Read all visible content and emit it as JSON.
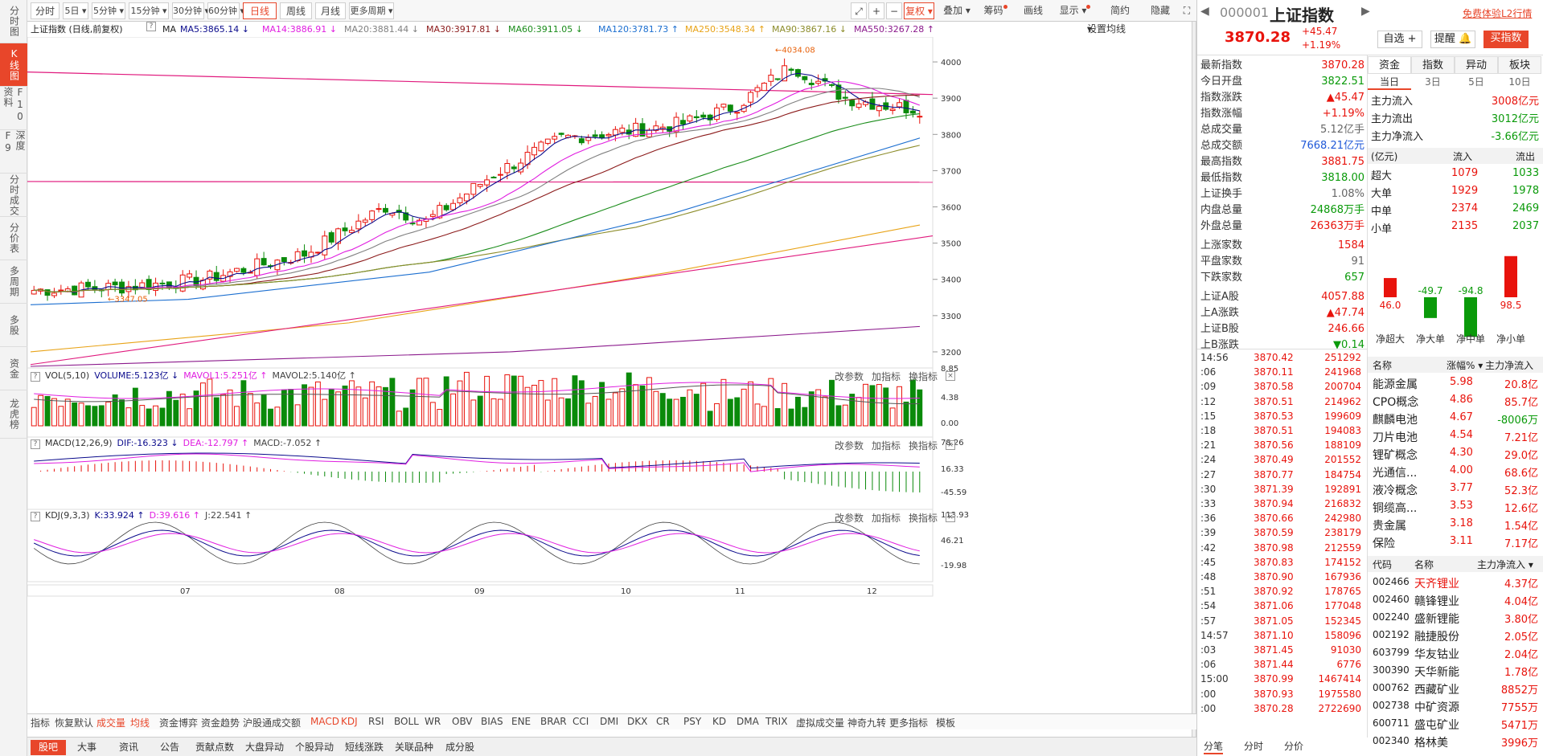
{
  "left_nav": [
    "分时图",
    "K线图",
    "F10资料",
    "深度F9",
    "分时成交",
    "分价表",
    "多周期",
    "多股",
    "资金",
    "龙虎榜"
  ],
  "toolbar": {
    "periods": [
      "分时",
      "5日",
      "5分钟",
      "15分钟",
      "30分钟",
      "60分钟",
      "日线",
      "周线",
      "月线",
      "更多周期"
    ],
    "active": "日线",
    "right": [
      "复权",
      "叠加",
      "筹码",
      "画线",
      "显示",
      "简约",
      "隐藏"
    ]
  },
  "chart_info": {
    "title": "上证指数 (日线,前复权)",
    "ma_label": "MA",
    "ma": [
      {
        "text": "MA5:3865.14",
        "color": "#0b0b8c",
        "arrow": "↓"
      },
      {
        "text": "MA14:3886.91",
        "color": "#e01ee0",
        "arrow": "↓"
      },
      {
        "text": "MA20:3881.44",
        "color": "#808080",
        "arrow": "↓"
      },
      {
        "text": "MA30:3917.81",
        "color": "#8b1a1a",
        "arrow": "↓"
      },
      {
        "text": "MA60:3911.05",
        "color": "#1a8c1a",
        "arrow": "↓"
      },
      {
        "text": "MA120:3781.73",
        "color": "#1c6fd0",
        "arrow": "↑"
      },
      {
        "text": "MA250:3548.34",
        "color": "#e8a317",
        "arrow": "↑"
      },
      {
        "text": "MA90:3867.16",
        "color": "#8c8c2a",
        "arrow": "↓"
      },
      {
        "text": "MA550:3267.28",
        "color": "#8b1a8c",
        "arrow": "↑"
      }
    ],
    "setting": "设置均线"
  },
  "chart_data": {
    "type": "candlestick",
    "period": "日线",
    "y_ticks": [
      4000,
      3900,
      3800,
      3700,
      3600,
      3500,
      3400,
      3300,
      3200
    ],
    "x_ticks": [
      "07",
      "08",
      "09",
      "10",
      "11",
      "12"
    ],
    "annotations": [
      "4034.08",
      "3347.05"
    ],
    "hlines": [
      3950,
      3670
    ]
  },
  "vol": {
    "label": "VOL(5,10)",
    "volume": "VOLUME:5.123亿",
    "mavol1": "MAVOL1:5.251亿",
    "mavol2": "MAVOL2:5.140亿",
    "ticks": [
      "8.85",
      "4.38",
      "0.00"
    ]
  },
  "macd": {
    "label": "MACD(12,26,9)",
    "dif": "DIF:-16.323",
    "dea": "DEA:-12.797",
    "macd": "MACD:-7.052",
    "ticks": [
      "78.26",
      "16.33",
      "-45.59"
    ]
  },
  "kdj": {
    "label": "KDJ(9,3,3)",
    "k": "K:33.924",
    "d": "D:39.616",
    "j": "J:22.541",
    "ticks": [
      "113.93",
      "46.21",
      "-19.98"
    ]
  },
  "panel_actions": [
    "改参数",
    "加指标",
    "换指标"
  ],
  "indicator_tabs": [
    "指标",
    "恢复默认",
    "成交量",
    "均线",
    "资金博弈",
    "资金趋势",
    "沪股通成交额",
    "MACD",
    "KDJ",
    "RSI",
    "BOLL",
    "WR",
    "OBV",
    "BIAS",
    "ENE",
    "BRAR",
    "CCI",
    "DMI",
    "DKX",
    "CR",
    "PSY",
    "KD",
    "DMA",
    "TRIX",
    "虚拟成交量",
    "神奇九转",
    "更多指标",
    "模板"
  ],
  "bottom_tabs": [
    "股吧",
    "大事",
    "资讯",
    "公告",
    "贡献点数",
    "大盘异动",
    "个股异动",
    "短线涨跌",
    "关联品种",
    "成分股"
  ],
  "quote": {
    "code": "000001",
    "name": "上证指数",
    "price": "3870.28",
    "change": "+45.47",
    "pct": "+1.19%",
    "promo": "免费体验L2行情",
    "buttons": [
      "自选",
      "提醒",
      "买指数"
    ]
  },
  "stats": [
    [
      "最新指数",
      "3870.28",
      "red"
    ],
    [
      "今日开盘",
      "3822.51",
      "green"
    ],
    [
      "指数涨跌",
      "▲45.47",
      "red"
    ],
    [
      "指数涨幅",
      "+1.19%",
      "red"
    ],
    [
      "总成交量",
      "5.12亿手",
      "gray"
    ],
    [
      "总成交额",
      "7668.21亿元",
      "blue"
    ],
    [
      "最高指数",
      "3881.75",
      "red"
    ],
    [
      "最低指数",
      "3818.00",
      "green"
    ],
    [
      "上证换手",
      "1.08%",
      "gray"
    ],
    [
      "内盘总量",
      "24868万手",
      "green"
    ],
    [
      "外盘总量",
      "26363万手",
      "red"
    ],
    [
      "上涨家数",
      "1584",
      "red"
    ],
    [
      "平盘家数",
      "91",
      "gray"
    ],
    [
      "下跌家数",
      "657",
      "green"
    ],
    [
      "上证A股",
      "4057.88",
      "red"
    ],
    [
      "上A涨跌",
      "▲47.74",
      "red"
    ],
    [
      "上证B股",
      "246.66",
      "red"
    ],
    [
      "上B涨跌",
      "▼0.14",
      "green"
    ]
  ],
  "ticks": [
    [
      "14:56",
      "3870.42",
      "251292"
    ],
    [
      ":06",
      "3870.11",
      "241968"
    ],
    [
      ":09",
      "3870.58",
      "200704"
    ],
    [
      ":12",
      "3870.51",
      "214962"
    ],
    [
      ":15",
      "3870.53",
      "199609"
    ],
    [
      ":18",
      "3870.51",
      "194083"
    ],
    [
      ":21",
      "3870.56",
      "188109"
    ],
    [
      ":24",
      "3870.49",
      "201552"
    ],
    [
      ":27",
      "3870.77",
      "184754"
    ],
    [
      ":30",
      "3871.39",
      "192891"
    ],
    [
      ":33",
      "3870.94",
      "216832"
    ],
    [
      ":36",
      "3870.66",
      "242980"
    ],
    [
      ":39",
      "3870.59",
      "238179"
    ],
    [
      ":42",
      "3870.98",
      "212559"
    ],
    [
      ":45",
      "3870.83",
      "174152"
    ],
    [
      ":48",
      "3870.90",
      "167936"
    ],
    [
      ":51",
      "3870.92",
      "178765"
    ],
    [
      ":54",
      "3871.06",
      "177048"
    ],
    [
      ":57",
      "3871.05",
      "152345"
    ],
    [
      "14:57",
      "3871.10",
      "158096"
    ],
    [
      ":03",
      "3871.45",
      "91030"
    ],
    [
      ":06",
      "3871.44",
      "6776"
    ],
    [
      "15:00",
      "3870.99",
      "1467414"
    ],
    [
      ":00",
      "3870.93",
      "1975580"
    ],
    [
      ":00",
      "3870.28",
      "2722690"
    ]
  ],
  "tick_tabs": [
    "分笔",
    "分时",
    "分价"
  ],
  "fund": {
    "tabs": [
      "资金",
      "指数",
      "异动",
      "板块"
    ],
    "subtabs": [
      "当日",
      "3日",
      "5日",
      "10日"
    ],
    "rows": [
      [
        "主力流入",
        "3008亿元",
        "red"
      ],
      [
        "主力流出",
        "3012亿元",
        "green"
      ],
      [
        "主力净流入",
        "-3.66亿元",
        "green"
      ]
    ],
    "head": [
      "(亿元)",
      "流入",
      "流出"
    ],
    "table": [
      [
        "超大",
        "1079",
        "1033"
      ],
      [
        "大单",
        "1929",
        "1978"
      ],
      [
        "中单",
        "2374",
        "2469"
      ],
      [
        "小单",
        "2135",
        "2037"
      ]
    ],
    "bars": [
      {
        "label": "净超大",
        "value": 46.0
      },
      {
        "label": "净大单",
        "value": -49.7
      },
      {
        "label": "净中单",
        "value": -94.8
      },
      {
        "label": "净小单",
        "value": 98.5
      }
    ]
  },
  "sectors": {
    "head": [
      "名称",
      "涨幅%",
      "主力净流入"
    ],
    "rows": [
      [
        "能源金属",
        "5.98",
        "20.8亿"
      ],
      [
        "CPO概念",
        "4.86",
        "85.7亿"
      ],
      [
        "麒麟电池",
        "4.67",
        "-8006万"
      ],
      [
        "刀片电池",
        "4.54",
        "7.21亿"
      ],
      [
        "锂矿概念",
        "4.30",
        "29.0亿"
      ],
      [
        "光通信...",
        "4.00",
        "68.6亿"
      ],
      [
        "液冷概念",
        "3.77",
        "52.3亿"
      ],
      [
        "铜缆高...",
        "3.53",
        "12.6亿"
      ],
      [
        "贵金属",
        "3.18",
        "1.54亿"
      ],
      [
        "保险",
        "3.11",
        "7.17亿"
      ]
    ]
  },
  "stocks": {
    "head": [
      "代码",
      "名称",
      "主力净流入"
    ],
    "rows": [
      [
        "002466",
        "天齐锂业",
        "4.37亿"
      ],
      [
        "002460",
        "赣锋锂业",
        "4.04亿"
      ],
      [
        "002240",
        "盛新锂能",
        "3.80亿"
      ],
      [
        "002192",
        "融捷股份",
        "2.05亿"
      ],
      [
        "603799",
        "华友钴业",
        "2.04亿"
      ],
      [
        "300390",
        "天华新能",
        "1.78亿"
      ],
      [
        "000762",
        "西藏矿业",
        "8852万"
      ],
      [
        "002738",
        "中矿资源",
        "7755万"
      ],
      [
        "600711",
        "盛屯矿业",
        "5471万"
      ],
      [
        "002340",
        "格林美",
        "3996万"
      ]
    ]
  }
}
